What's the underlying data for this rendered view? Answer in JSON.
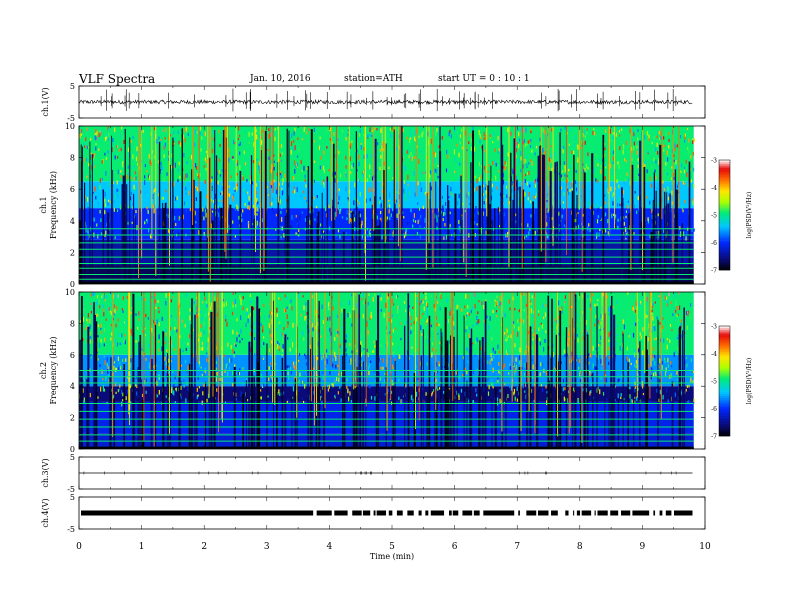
{
  "header": {
    "title": "VLF  Spectra",
    "date": "Jan. 10, 2016",
    "station": "station=ATH",
    "start": "start  UT  =    0  : 10 : 1"
  },
  "chart_data": [
    {
      "type": "line",
      "panel": "ch1-waveform",
      "ylabel": "ch.1(V)",
      "ylim": [
        -5,
        5
      ],
      "yticks": [
        "5",
        "-5"
      ],
      "xlim": [
        0,
        10
      ],
      "data_end_min": 9.8,
      "approx_baseline_V": 0.0,
      "approx_noise_amplitude_V": 0.6
    },
    {
      "type": "heatmap",
      "panel": "ch1-spectrogram",
      "ylabel_channel": "ch.1",
      "ylabel": "Frequency  (kHz)",
      "ylim": [
        0,
        10
      ],
      "yticks": [
        "0",
        "2",
        "4",
        "6",
        "8",
        "10"
      ],
      "xlim": [
        0,
        10
      ],
      "colorbar": {
        "label": "log(PSD(V²/Hz)",
        "range": [
          -7,
          -3
        ],
        "ticks": [
          "-3",
          "-4",
          "-5",
          "-6",
          "-7"
        ]
      },
      "bands_kHz_logPSD": [
        {
          "f_from": 0,
          "f_to": 1.2,
          "logPSD": -6.7
        },
        {
          "f_from": 1.2,
          "f_to": 2.8,
          "logPSD": -6.4
        },
        {
          "f_from": 2.8,
          "f_to": 4.8,
          "logPSD": -6.0
        },
        {
          "f_from": 4.8,
          "f_to": 6.5,
          "logPSD": -5.4
        },
        {
          "f_from": 6.5,
          "f_to": 10,
          "logPSD": -4.9
        }
      ],
      "lines_kHz": [
        0.3,
        0.6,
        1.0,
        1.3,
        1.7,
        2.2,
        2.6,
        3.1,
        3.5
      ]
    },
    {
      "type": "heatmap",
      "panel": "ch2-spectrogram",
      "ylabel_channel": "ch.2",
      "ylabel": "Frequency  (kHz)",
      "ylim": [
        0,
        10
      ],
      "yticks": [
        "0",
        "2",
        "4",
        "6",
        "8",
        "10"
      ],
      "xlim": [
        0,
        10
      ],
      "colorbar": {
        "label": "log(PSD(V²/Hz)",
        "range": [
          -7,
          -3
        ],
        "ticks": [
          "-3",
          "-4",
          "-5",
          "-6",
          "-7"
        ]
      },
      "bands_kHz_logPSD": [
        {
          "f_from": 0,
          "f_to": 1.0,
          "logPSD": -6.2
        },
        {
          "f_from": 1.0,
          "f_to": 3.0,
          "logPSD": -6.1
        },
        {
          "f_from": 3.0,
          "f_to": 4.0,
          "logPSD": -6.6
        },
        {
          "f_from": 4.0,
          "f_to": 6.0,
          "logPSD": -5.6
        },
        {
          "f_from": 6.0,
          "f_to": 10,
          "logPSD": -4.9
        }
      ],
      "lines_kHz": [
        0.5,
        0.9,
        1.4,
        1.9,
        2.4,
        2.9,
        4.2,
        4.6,
        5.0
      ]
    },
    {
      "type": "line",
      "panel": "ch3-waveform",
      "ylabel": "ch.3(V)",
      "ylim": [
        -5,
        5
      ],
      "yticks": [
        "5",
        "-5"
      ],
      "xlim": [
        0,
        10
      ],
      "data_end_min": 9.8,
      "approx_baseline_V": 0.0
    },
    {
      "type": "line",
      "panel": "ch4-waveform",
      "ylabel": "ch.4(V)",
      "ylim": [
        -5,
        5
      ],
      "yticks": [
        "5",
        "-5"
      ],
      "xlim": [
        0,
        10
      ],
      "data_end_min": 9.8,
      "approx_baseline_V": 0.0
    }
  ],
  "xaxis": {
    "label": "Time  (min)",
    "ticks": [
      "0",
      "1",
      "2",
      "3",
      "4",
      "5",
      "6",
      "7",
      "8",
      "9",
      "10"
    ]
  }
}
